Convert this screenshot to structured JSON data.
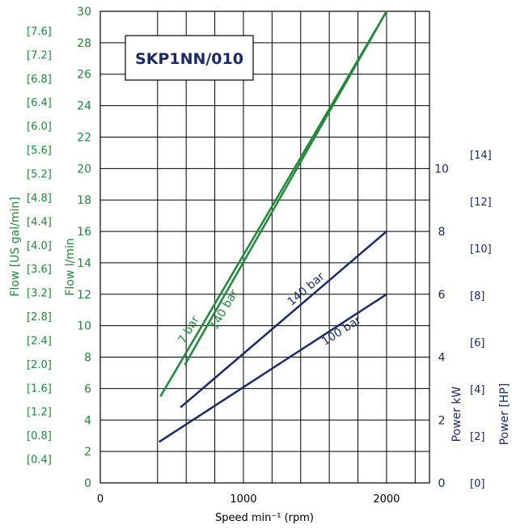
{
  "chart_data": {
    "type": "line",
    "title": "SKP1NN/010",
    "xlabel": "Speed min⁻¹ (rpm)",
    "x_ticks": [
      "0",
      "1000",
      "2000"
    ],
    "xlim": [
      0,
      2300
    ],
    "y_left": {
      "label": "Flow l/min",
      "ticks": [
        "0",
        "2",
        "4",
        "6",
        "8",
        "10",
        "12",
        "14",
        "16",
        "18",
        "20",
        "22",
        "24",
        "26",
        "28",
        "30"
      ],
      "ylim": [
        0,
        30
      ]
    },
    "y_left_outer": {
      "label": "Flow [US gal/min]",
      "ticks": [
        "[0.4]",
        "[0.8]",
        "[1.2]",
        "[1.6]",
        "[2.0]",
        "[2.4]",
        "[2.8]",
        "[3.2]",
        "[3.6]",
        "[4.0]",
        "[4.4]",
        "[4.8]",
        "[5.2]",
        "[5.6]",
        "[6.0]",
        "[6.4]",
        "[6.8]",
        "[7.2]",
        "[7.6]"
      ]
    },
    "y_right": {
      "label": "Power kW",
      "ticks": [
        "0",
        "2",
        "4",
        "6",
        "8",
        "10"
      ],
      "ylim": [
        0,
        15
      ]
    },
    "y_right_outer": {
      "label": "Power [HP]",
      "ticks": [
        "[0]",
        "[2]",
        "[4]",
        "[6]",
        "[8]",
        "[10]",
        "[12]",
        "[14]"
      ]
    },
    "grid": true,
    "flow_series": [
      {
        "name": "7 bar",
        "axis": "flow",
        "color": "#1f8a3a",
        "x": [
          420,
          2000
        ],
        "y": [
          5.5,
          30
        ]
      },
      {
        "name": "140 bar",
        "axis": "flow",
        "color": "#1f8a3a",
        "x": [
          590,
          2000
        ],
        "y": [
          7.5,
          30
        ]
      }
    ],
    "power_series": [
      {
        "name": "140 bar",
        "axis": "power",
        "color": "#1b2a6b",
        "x": [
          560,
          2000
        ],
        "y": [
          2.4,
          8
        ]
      },
      {
        "name": "100 bar",
        "axis": "power",
        "color": "#1b2a6b",
        "x": [
          410,
          2000
        ],
        "y": [
          1.3,
          6
        ]
      }
    ]
  }
}
